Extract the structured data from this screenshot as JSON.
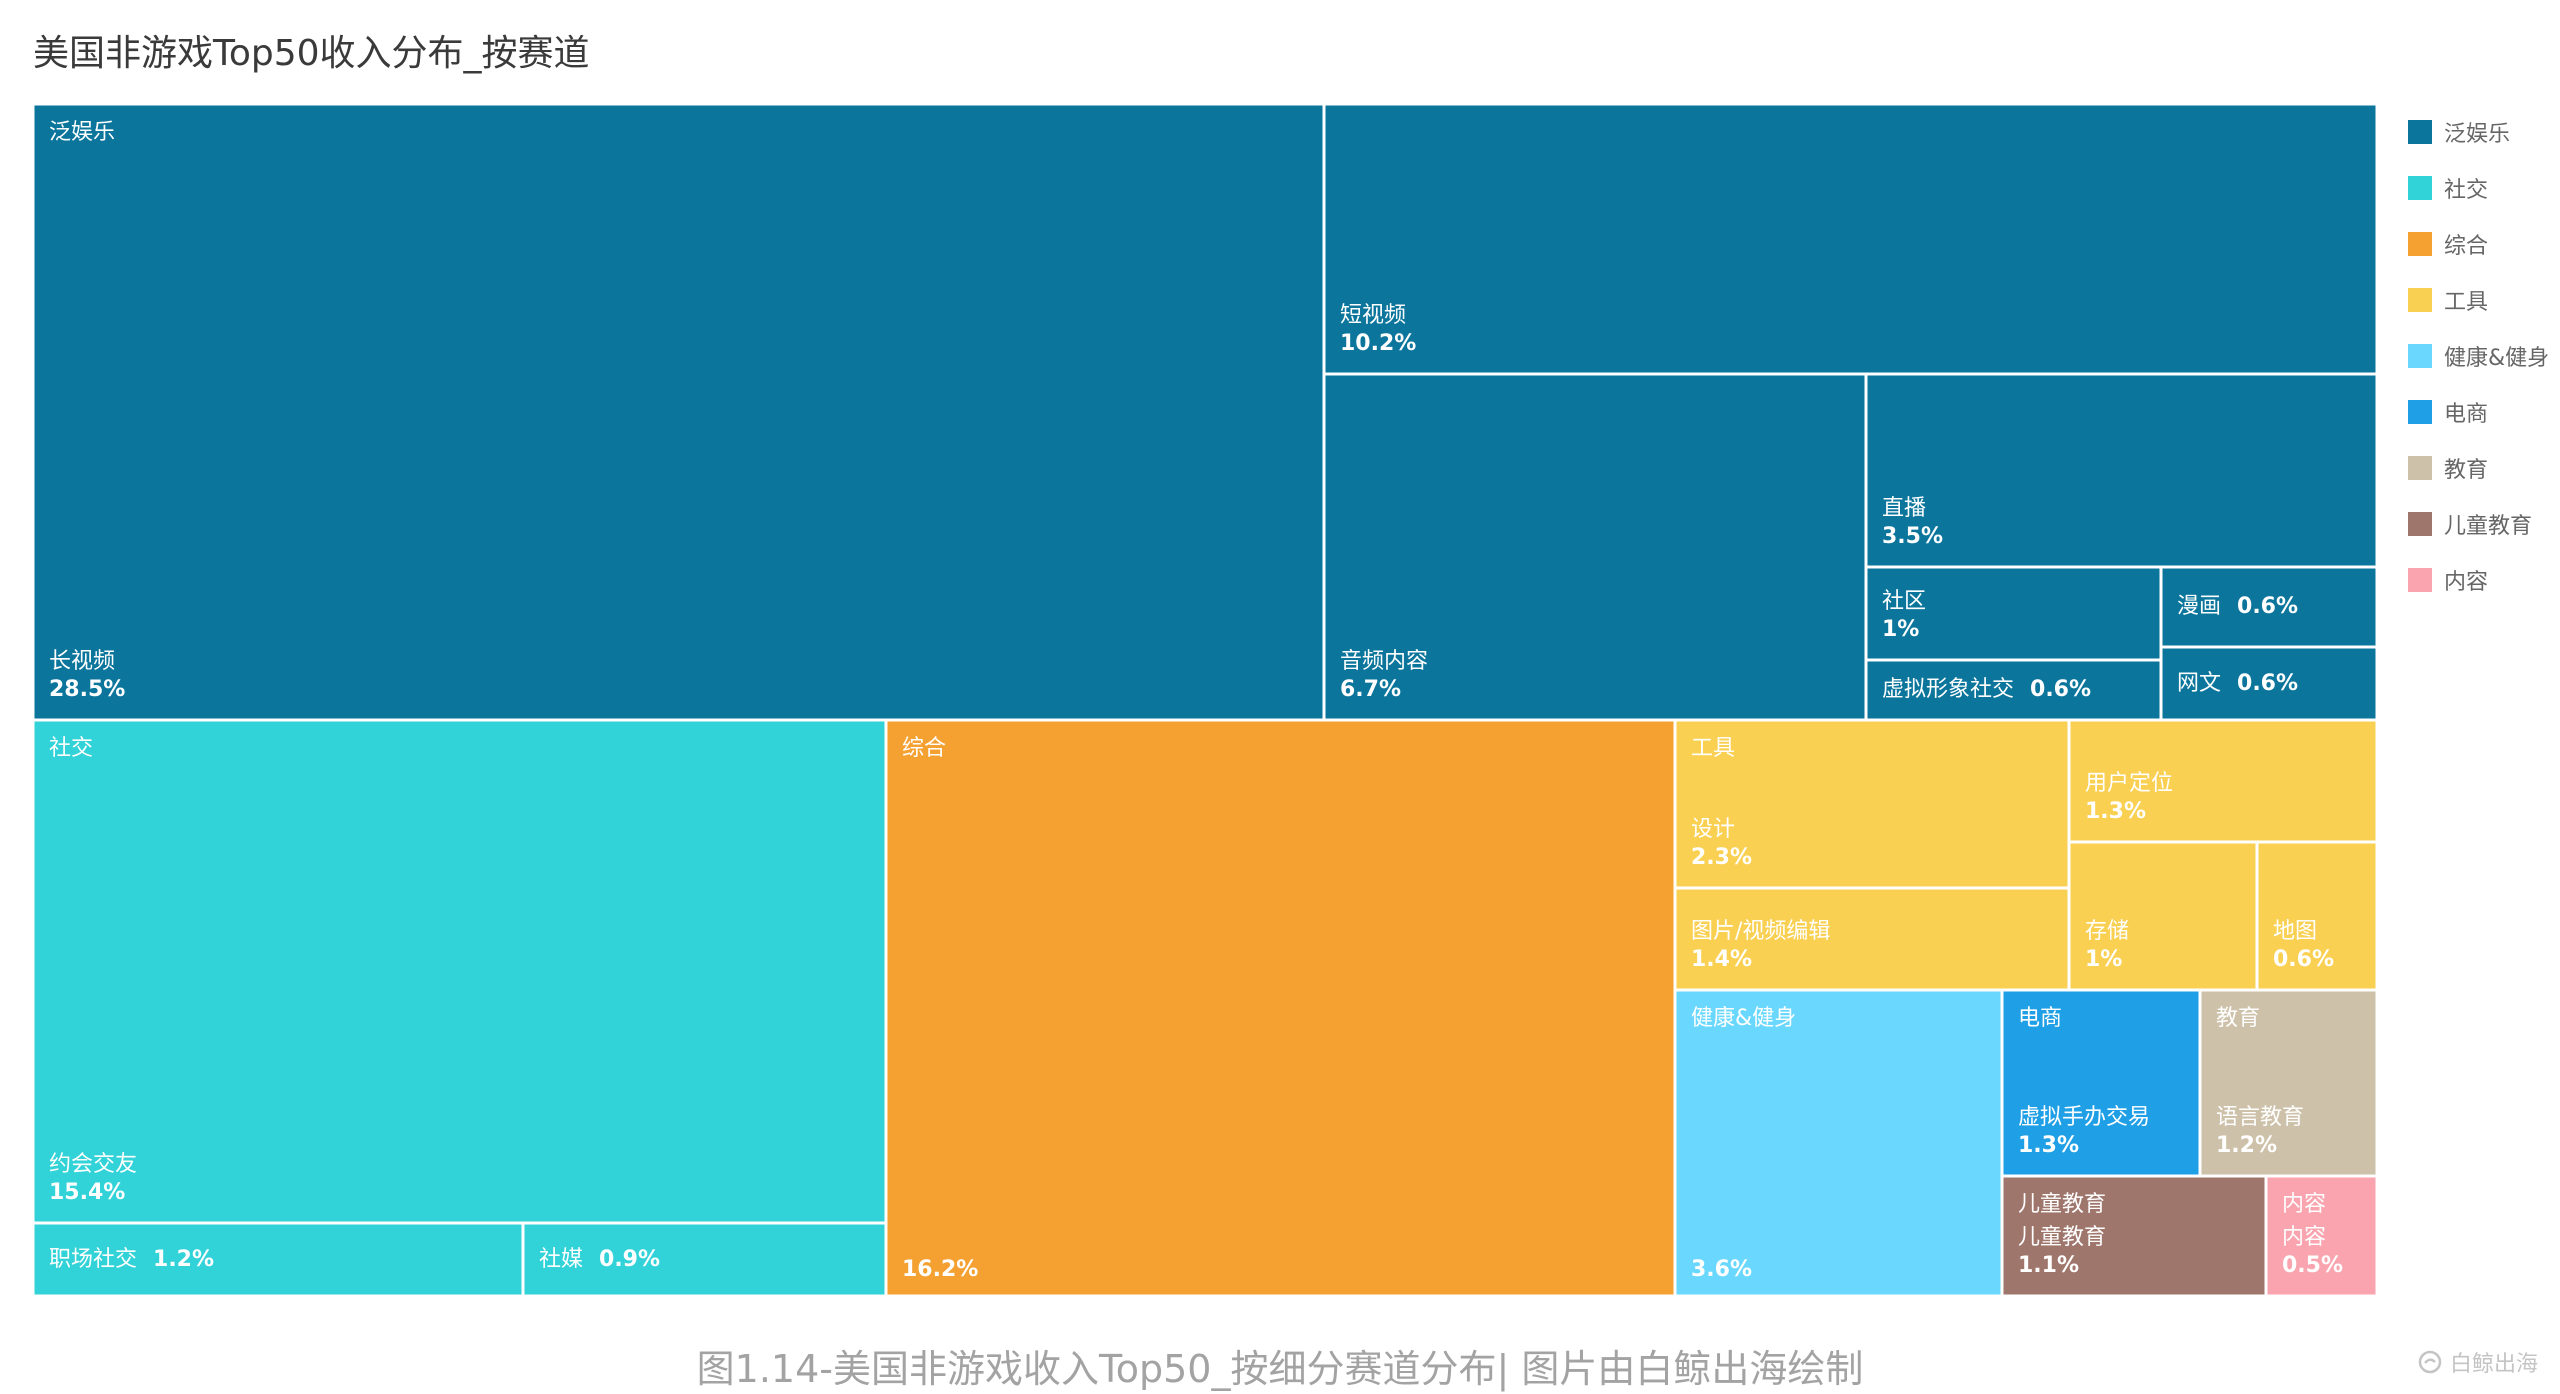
{
  "title": "美国非游戏Top50收入分布_按赛道",
  "caption": "图1.14-美国非游戏收入Top50_按细分赛道分布| 图片由白鲸出海绘制",
  "watermark": "白鲸出海",
  "chart_data": {
    "type": "treemap",
    "title": "美国非游戏Top50收入分布_按赛道",
    "unit": "%",
    "legend_position": "right",
    "groups": [
      {
        "name": "泛娱乐",
        "color": "#0b759c",
        "children": [
          {
            "name": "长视频",
            "value": 28.5
          },
          {
            "name": "短视频",
            "value": 10.2
          },
          {
            "name": "音频内容",
            "value": 6.7
          },
          {
            "name": "直播",
            "value": 3.5
          },
          {
            "name": "社区",
            "value": 1
          },
          {
            "name": "漫画",
            "value": 0.6
          },
          {
            "name": "虚拟形象社交",
            "value": 0.6
          },
          {
            "name": "网文",
            "value": 0.6
          }
        ]
      },
      {
        "name": "社交",
        "color": "#31d2d8",
        "children": [
          {
            "name": "约会交友",
            "value": 15.4
          },
          {
            "name": "职场社交",
            "value": 1.2
          },
          {
            "name": "社媒",
            "value": 0.9
          }
        ]
      },
      {
        "name": "综合",
        "color": "#f5a132",
        "children": [
          {
            "name": "",
            "value": 16.2
          }
        ]
      },
      {
        "name": "工具",
        "color": "#fad052",
        "children": [
          {
            "name": "设计",
            "value": 2.3
          },
          {
            "name": "图片/视频编辑",
            "value": 1.4
          },
          {
            "name": "用户定位",
            "value": 1.3
          },
          {
            "name": "存储",
            "value": 1
          },
          {
            "name": "地图",
            "value": 0.6
          }
        ]
      },
      {
        "name": "健康&健身",
        "color": "#6ad8fe",
        "children": [
          {
            "name": "",
            "value": 3.6
          }
        ]
      },
      {
        "name": "电商",
        "color": "#1f9fe6",
        "children": [
          {
            "name": "虚拟手办交易",
            "value": 1.3
          }
        ]
      },
      {
        "name": "教育",
        "color": "#cdc1a9",
        "children": [
          {
            "name": "语言教育",
            "value": 1.2
          }
        ]
      },
      {
        "name": "儿童教育",
        "color": "#9f766c",
        "children": [
          {
            "name": "儿童教育",
            "value": 1.1
          }
        ]
      },
      {
        "name": "内容",
        "color": "#f9a4ae",
        "children": [
          {
            "name": "内容",
            "value": 0.5
          }
        ]
      }
    ]
  }
}
